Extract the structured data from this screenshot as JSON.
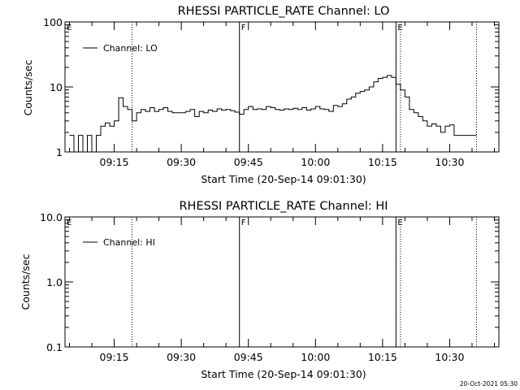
{
  "chart_data": [
    {
      "type": "line",
      "title": "RHESSI PARTICLE_RATE Channel: LO",
      "xlabel": "Start Time (20-Sep-14 09:01:30)",
      "ylabel": "Counts/sec",
      "yscale": "log",
      "ylim": [
        1,
        100
      ],
      "xlim": [
        "09:04",
        "10:41"
      ],
      "yticks": [
        "1",
        "10",
        "100"
      ],
      "xticks": [
        "09:15",
        "09:30",
        "09:45",
        "10:00",
        "10:15",
        "10:30"
      ],
      "legend": {
        "entries": [
          "Channel: LO"
        ],
        "position": "top-left"
      },
      "flags": [
        {
          "label": "E",
          "time": "09:04"
        },
        {
          "label": "F",
          "time": "09:43"
        },
        {
          "label": "E",
          "time": "10:18"
        }
      ],
      "vertical_lines": [
        {
          "time": "09:19",
          "style": "dotted"
        },
        {
          "time": "09:43",
          "style": "solid"
        },
        {
          "time": "10:18",
          "style": "solid"
        },
        {
          "time": "10:19",
          "style": "dotted"
        },
        {
          "time": "10:36",
          "style": "dotted"
        }
      ],
      "series": [
        {
          "x": [
            "09:05",
            "09:06",
            "09:07",
            "09:08",
            "09:09",
            "09:10",
            "09:11",
            "09:12",
            "09:13",
            "09:14",
            "09:15",
            "09:16",
            "09:17",
            "09:18",
            "09:19",
            "09:20",
            "09:21",
            "09:22",
            "09:23",
            "09:24",
            "09:25",
            "09:26",
            "09:27",
            "09:28",
            "09:29",
            "09:30",
            "09:31",
            "09:32",
            "09:33",
            "09:34",
            "09:35",
            "09:36",
            "09:37",
            "09:38",
            "09:39",
            "09:40",
            "09:41",
            "09:42",
            "09:43",
            "09:44",
            "09:45",
            "09:46",
            "09:47",
            "09:48",
            "09:49",
            "09:50",
            "09:51",
            "09:52",
            "09:53",
            "09:54",
            "09:55",
            "09:56",
            "09:57",
            "09:58",
            "09:59",
            "10:00",
            "10:01",
            "10:02",
            "10:03",
            "10:04",
            "10:05",
            "10:06",
            "10:07",
            "10:08",
            "10:09",
            "10:10",
            "10:11",
            "10:12",
            "10:13",
            "10:14",
            "10:15",
            "10:16",
            "10:17",
            "10:18",
            "10:19",
            "10:20",
            "10:21",
            "10:22",
            "10:23",
            "10:24",
            "10:25",
            "10:26",
            "10:27",
            "10:28",
            "10:29",
            "10:30",
            "10:31",
            "10:32",
            "10:33",
            "10:34",
            "10:35"
          ],
          "y": [
            1.8,
            1,
            1.8,
            1,
            1.8,
            1,
            1.8,
            2.5,
            2.8,
            2.5,
            3,
            6.8,
            5,
            4.5,
            3,
            4,
            4.5,
            4.2,
            4.8,
            4.2,
            4.5,
            4.8,
            4.2,
            4,
            4,
            4,
            4.2,
            4.5,
            3.5,
            4.2,
            4,
            4.4,
            4.2,
            4.6,
            4.4,
            4.5,
            4.3,
            4.1,
            3.8,
            4.5,
            5,
            4.5,
            4.6,
            4.5,
            5,
            4.8,
            4.5,
            4.4,
            4.6,
            4.5,
            4.7,
            4.5,
            4.8,
            4.4,
            4.6,
            5,
            4.6,
            4.5,
            4.2,
            5.2,
            5,
            5.5,
            6.5,
            7,
            8,
            8.5,
            9,
            10,
            12,
            13.5,
            14,
            15,
            14,
            11,
            9,
            7,
            4.5,
            4,
            3.5,
            3,
            2.5,
            2.7,
            2.5,
            2,
            2.5,
            2.6,
            1.8,
            1.8,
            1.8,
            1.8,
            1.8
          ]
        }
      ]
    },
    {
      "type": "line",
      "title": "RHESSI PARTICLE_RATE Channel: HI",
      "xlabel": "Start Time (20-Sep-14 09:01:30)",
      "ylabel": "Counts/sec",
      "yscale": "log",
      "ylim": [
        0.1,
        10
      ],
      "xlim": [
        "09:04",
        "10:41"
      ],
      "yticks": [
        "0.1",
        "1.0",
        "10.0"
      ],
      "xticks": [
        "09:15",
        "09:30",
        "09:45",
        "10:00",
        "10:15",
        "10:30"
      ],
      "legend": {
        "entries": [
          "Channel: HI"
        ],
        "position": "top-left"
      },
      "flags": [
        {
          "label": "E",
          "time": "09:04"
        },
        {
          "label": "F",
          "time": "09:43"
        },
        {
          "label": "E",
          "time": "10:18"
        }
      ],
      "vertical_lines": [
        {
          "time": "09:19",
          "style": "dotted"
        },
        {
          "time": "09:43",
          "style": "solid"
        },
        {
          "time": "10:18",
          "style": "solid"
        },
        {
          "time": "10:19",
          "style": "dotted"
        },
        {
          "time": "10:36",
          "style": "dotted"
        }
      ],
      "series": [
        {
          "x": [],
          "y": []
        }
      ]
    }
  ],
  "footer": {
    "timestamp": "20-Oct-2021 05:30"
  },
  "colors": {
    "axis": "#000000",
    "line": "#000000",
    "background": "#ffffff"
  }
}
